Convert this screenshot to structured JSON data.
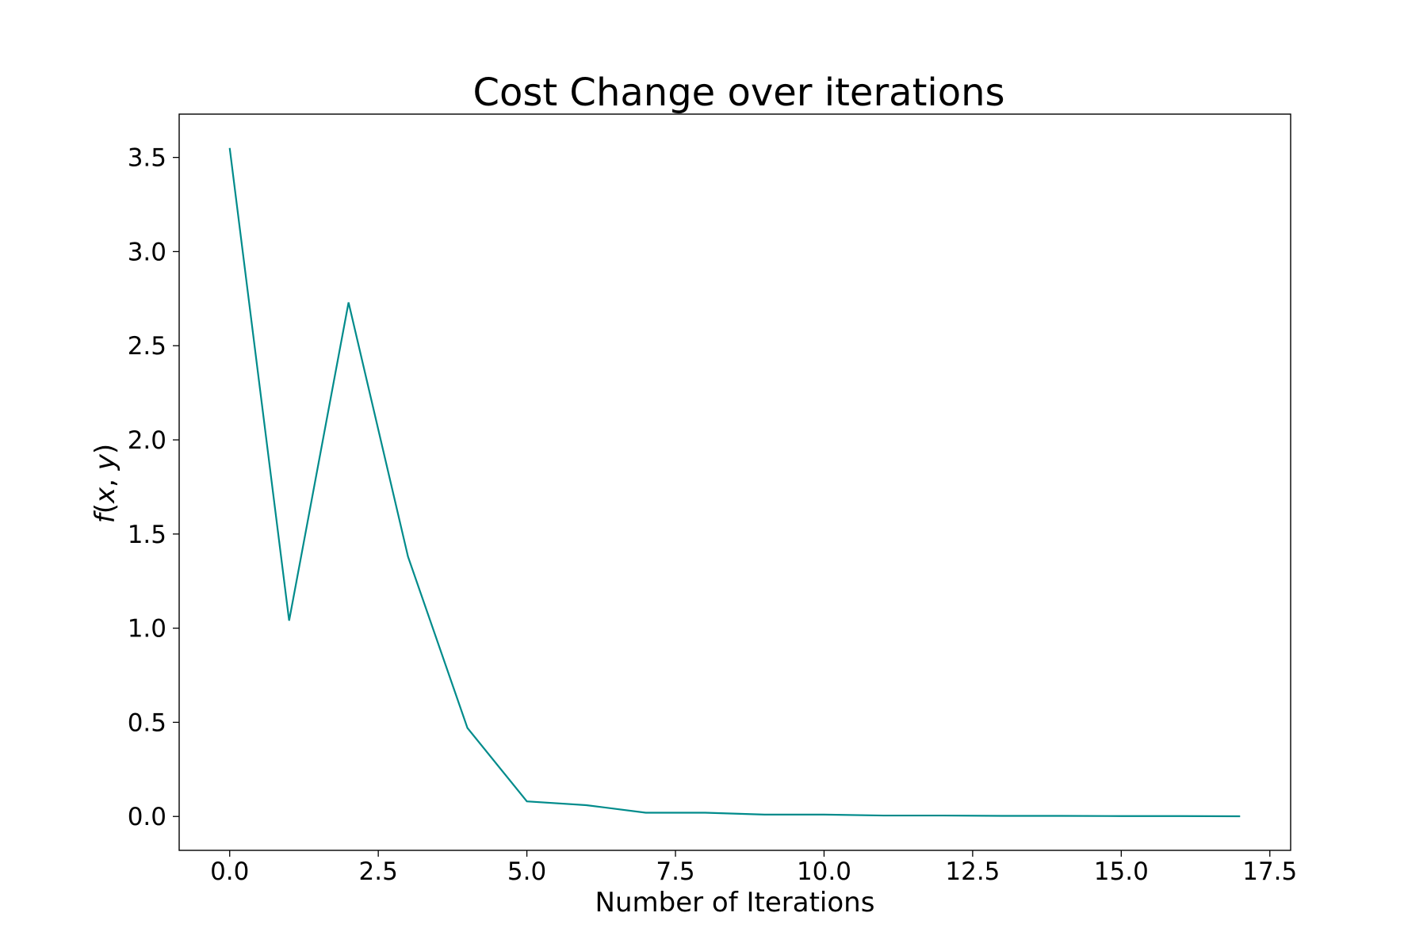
{
  "chart_data": {
    "type": "line",
    "title": "Cost Change over iterations",
    "xlabel": "Number of Iterations",
    "ylabel": {
      "f": "f",
      "open": "(",
      "x": "x",
      "comma": ", ",
      "y": "y",
      "close": ")"
    },
    "xlim": [
      -0.85,
      17.85
    ],
    "ylim": [
      -0.18,
      3.73
    ],
    "x_ticks": [
      0.0,
      2.5,
      5.0,
      7.5,
      10.0,
      12.5,
      15.0,
      17.5
    ],
    "x_tick_labels": [
      "0.0",
      "2.5",
      "5.0",
      "7.5",
      "10.0",
      "12.5",
      "15.0",
      "17.5"
    ],
    "y_ticks": [
      0.0,
      0.5,
      1.0,
      1.5,
      2.0,
      2.5,
      3.0,
      3.5
    ],
    "y_tick_labels": [
      "0.0",
      "0.5",
      "1.0",
      "1.5",
      "2.0",
      "2.5",
      "3.0",
      "3.5"
    ],
    "grid": false,
    "series": [
      {
        "color": "#008b8b",
        "x": [
          0,
          1,
          2,
          3,
          4,
          5,
          6,
          7,
          8,
          9,
          10,
          11,
          12,
          13,
          14,
          15,
          16,
          17
        ],
        "y": [
          3.55,
          1.04,
          2.73,
          1.38,
          0.47,
          0.08,
          0.06,
          0.02,
          0.02,
          0.01,
          0.01,
          0.005,
          0.005,
          0.003,
          0.003,
          0.002,
          0.002,
          0.001
        ]
      }
    ]
  }
}
